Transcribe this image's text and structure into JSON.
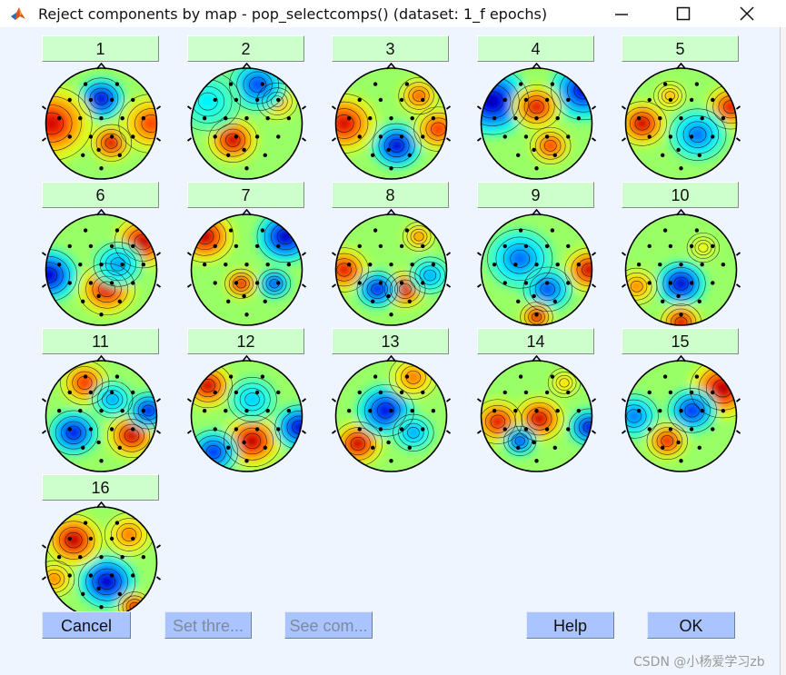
{
  "window": {
    "title": "Reject components by map - pop_selectcomps() (dataset: 1_f epochs)"
  },
  "components": [
    {
      "label": "1"
    },
    {
      "label": "2"
    },
    {
      "label": "3"
    },
    {
      "label": "4"
    },
    {
      "label": "5"
    },
    {
      "label": "6"
    },
    {
      "label": "7"
    },
    {
      "label": "8"
    },
    {
      "label": "9"
    },
    {
      "label": "10"
    },
    {
      "label": "11"
    },
    {
      "label": "12"
    },
    {
      "label": "13"
    },
    {
      "label": "14"
    },
    {
      "label": "15"
    },
    {
      "label": "16"
    }
  ],
  "buttons": {
    "cancel": "Cancel",
    "set_threshold": "Set thre...",
    "see_comp": "See com...",
    "help": "Help",
    "ok": "OK"
  },
  "watermark": "CSDN @小杨爱学习zb",
  "colors": {
    "component_button": "#ccffcc",
    "action_button": "#aac4ff",
    "background": "#eef5ff"
  }
}
